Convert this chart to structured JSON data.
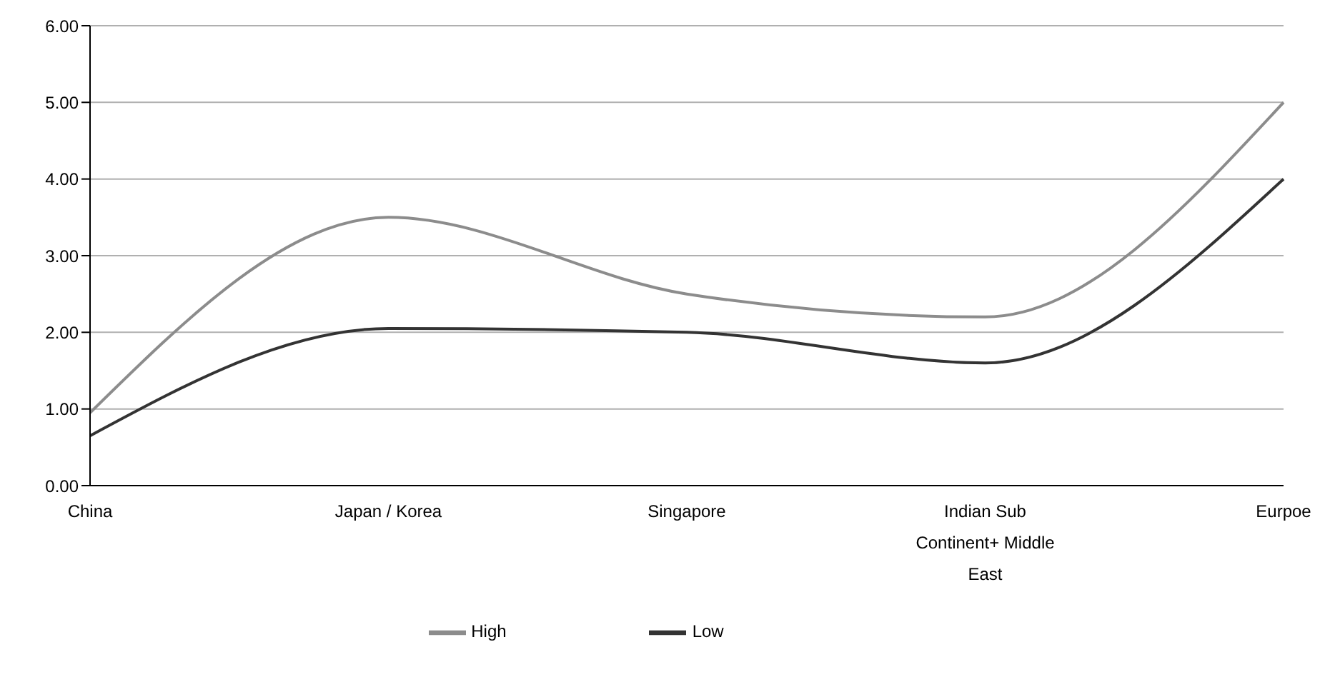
{
  "chart_data": {
    "type": "line",
    "categories": [
      "China",
      "Japan / Korea",
      "Singapore",
      "Indian Sub Continent+ Middle East",
      "Eurpoe"
    ],
    "series": [
      {
        "name": "Low",
        "color": "#333333",
        "values": [
          0.65,
          2.05,
          2.0,
          1.6,
          4.0
        ]
      },
      {
        "name": "High",
        "color": "#8c8c8c",
        "values": [
          0.95,
          3.5,
          2.5,
          2.2,
          5.0
        ]
      }
    ],
    "ylim": [
      0,
      6
    ],
    "yticks": [
      {
        "value": 0,
        "label": "0.00"
      },
      {
        "value": 1,
        "label": "1.00"
      },
      {
        "value": 2,
        "label": "2.00"
      },
      {
        "value": 3,
        "label": "3.00"
      },
      {
        "value": 4,
        "label": "4.00"
      },
      {
        "value": 5,
        "label": "5.00"
      },
      {
        "value": 6,
        "label": "6.00"
      }
    ],
    "grid": "y",
    "legend": "bottom",
    "marker": "none",
    "line_style": "solid"
  }
}
